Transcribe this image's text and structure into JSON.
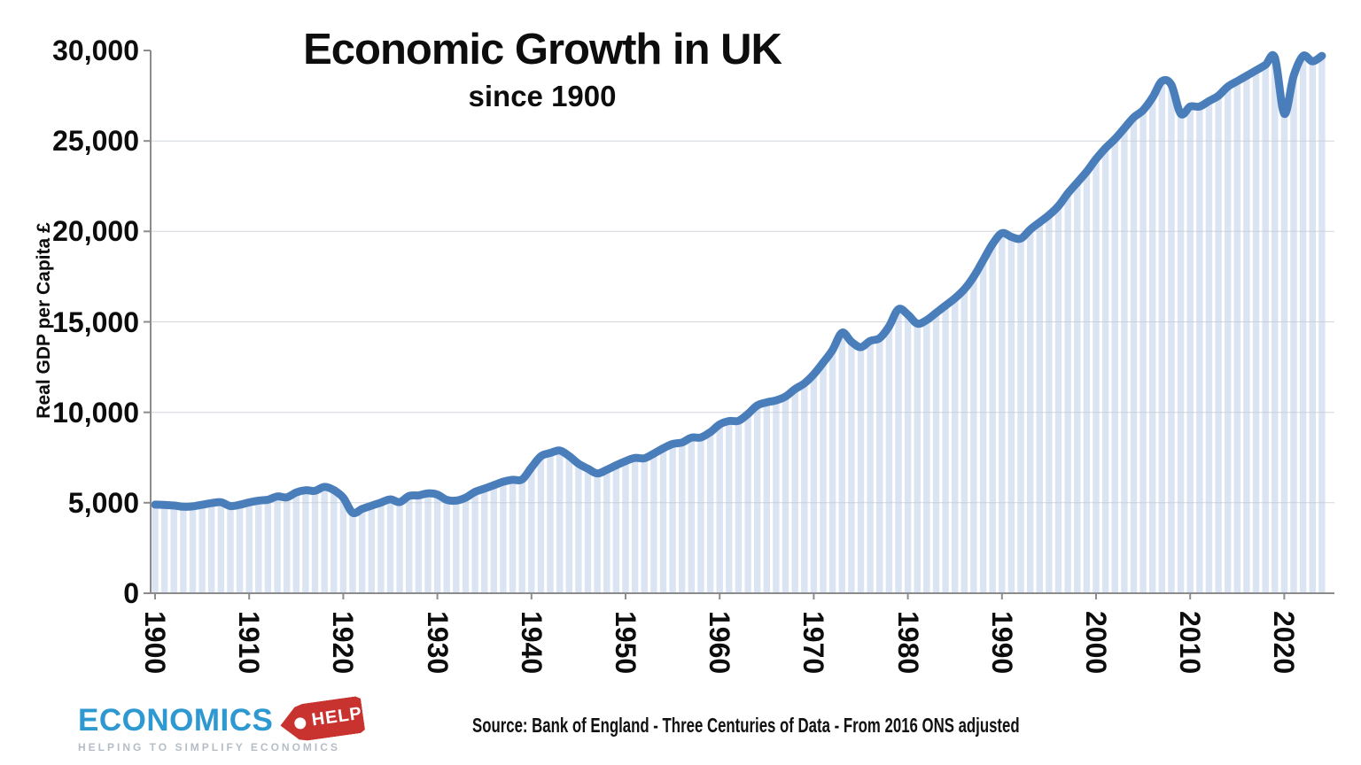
{
  "header": {
    "title": "Economic Growth in UK",
    "subtitle": "since 1900"
  },
  "source_line": "Source: Bank of England - Three Centuries of Data - From 2016 ONS adjusted",
  "logo": {
    "name": "ECONOMICS",
    "tag": "HELP",
    "tagline": "HELPING TO SIMPLIFY ECONOMICS",
    "name_color": "#2e98d0",
    "tag_color": "#c8332f",
    "tagline_color": "#b6bdc4"
  },
  "chart_data": {
    "type": "area",
    "title": "Economic Growth in UK",
    "subtitle": "since 1900",
    "xlabel": "",
    "ylabel": "Real GDP per Capita £",
    "legend": "none",
    "grid": "horizontal every 5000 (lines shown 5,000-25,000)",
    "line_color": "#4a7ebb",
    "area_fill_color": "#dbe4f2",
    "area_fill_style": "thin vertical bar per year with white gaps",
    "axis_color": "#8c8c8c",
    "grid_color": "#c3cad3",
    "xlim": [
      1900,
      2024
    ],
    "ylim": [
      0,
      30000
    ],
    "x_start": 1900,
    "x_step": 1,
    "x_end": 2024,
    "x_tick_labels": [
      "1900",
      "1910",
      "1920",
      "1930",
      "1940",
      "1950",
      "1960",
      "1970",
      "1980",
      "1990",
      "2000",
      "2010",
      "2020"
    ],
    "y_ticks": [
      0,
      5000,
      10000,
      15000,
      20000,
      25000,
      30000
    ],
    "y_tick_labels": [
      "0",
      "5,000",
      "10,000",
      "15,000",
      "20,000",
      "25,000",
      "30,000"
    ],
    "values": [
      4900,
      4880,
      4850,
      4780,
      4800,
      4890,
      4980,
      5030,
      4820,
      4890,
      5020,
      5120,
      5170,
      5350,
      5300,
      5570,
      5690,
      5660,
      5880,
      5700,
      5280,
      4450,
      4660,
      4840,
      5010,
      5190,
      5040,
      5380,
      5410,
      5520,
      5450,
      5160,
      5120,
      5280,
      5600,
      5780,
      5970,
      6160,
      6270,
      6290,
      6950,
      7570,
      7750,
      7890,
      7580,
      7160,
      6880,
      6620,
      6820,
      7070,
      7300,
      7480,
      7460,
      7720,
      8010,
      8250,
      8330,
      8600,
      8610,
      8900,
      9330,
      9520,
      9530,
      9910,
      10380,
      10550,
      10660,
      10870,
      11280,
      11600,
      12100,
      12750,
      13450,
      14400,
      13900,
      13600,
      13950,
      14100,
      14750,
      15700,
      15400,
      14900,
      15100,
      15500,
      15900,
      16300,
      16800,
      17500,
      18400,
      19300,
      19900,
      19700,
      19600,
      20100,
      20500,
      20900,
      21400,
      22100,
      22700,
      23300,
      24000,
      24600,
      25100,
      25700,
      26300,
      26700,
      27400,
      28300,
      28100,
      26500,
      26900,
      26900,
      27200,
      27500,
      28000,
      28300,
      28600,
      28900,
      29200,
      29600,
      26500,
      28600,
      29700,
      29400,
      29700
    ]
  }
}
